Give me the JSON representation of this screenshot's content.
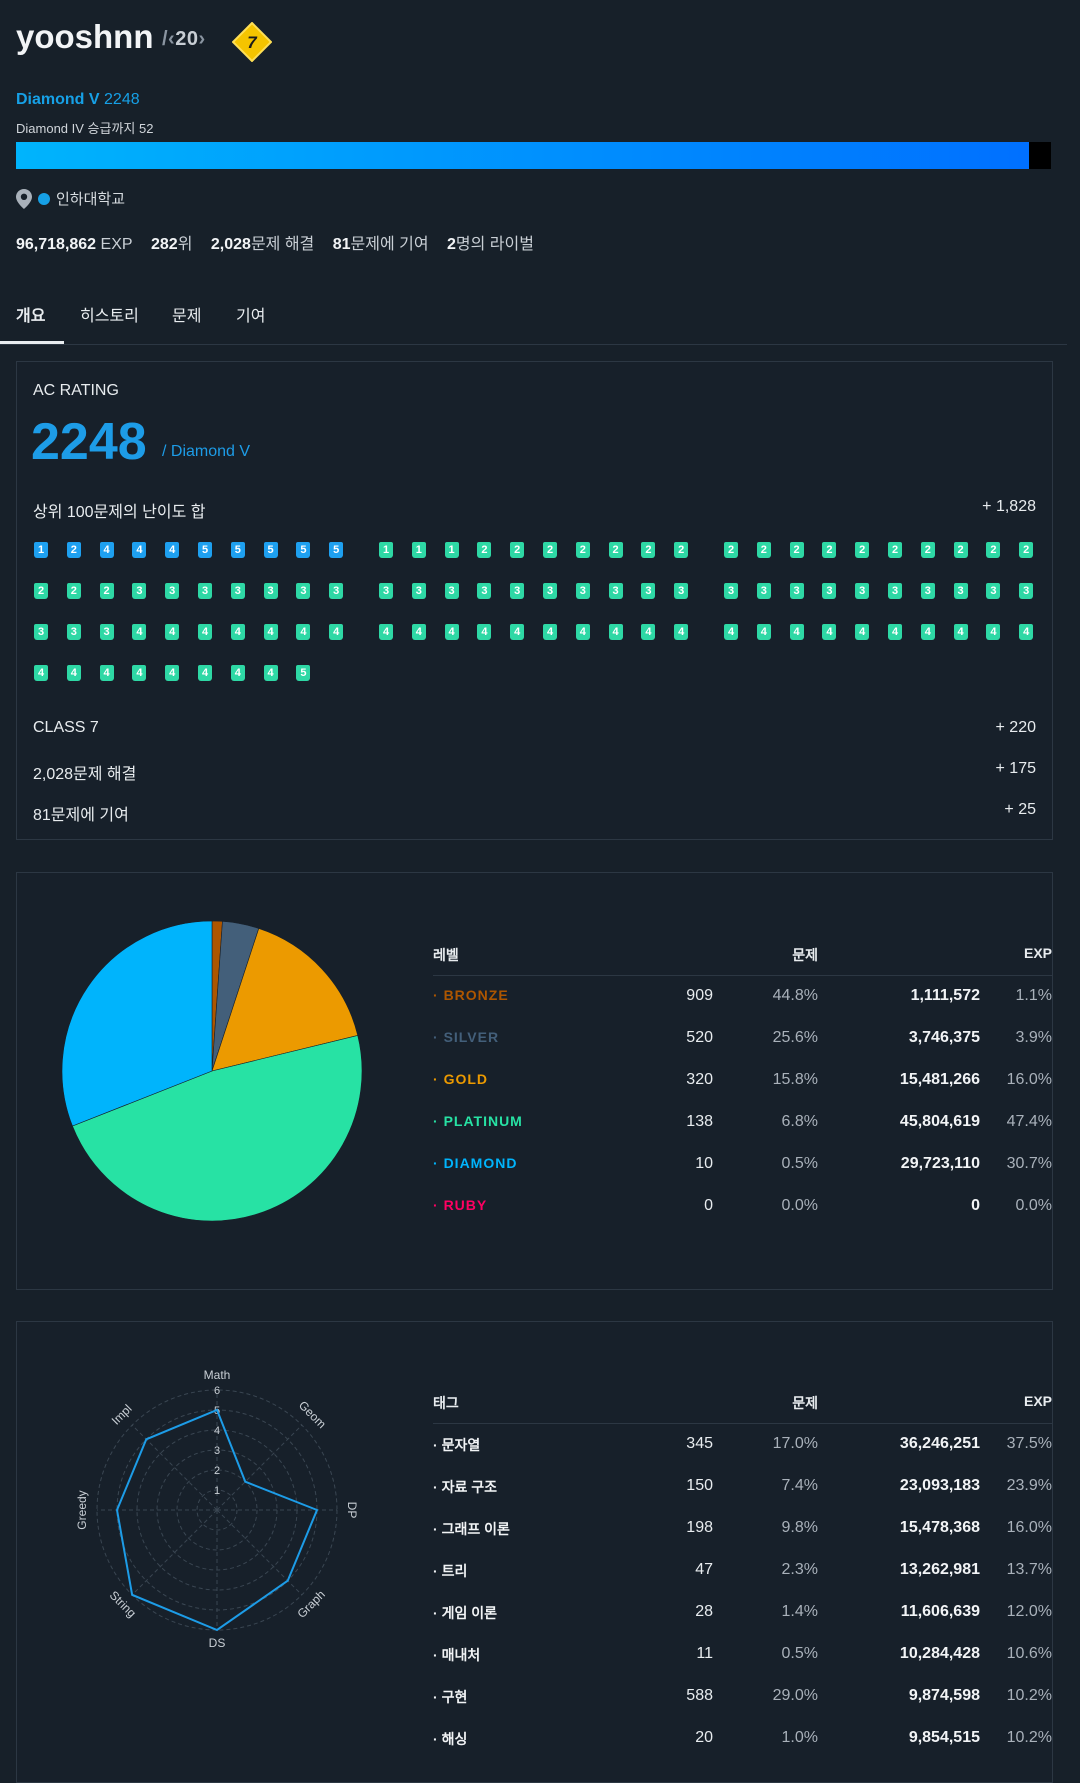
{
  "profile": {
    "username": "yooshnn",
    "ring_number": "20",
    "class_level": "7",
    "tier": "Diamond V",
    "rating": "2248",
    "promotion_text": "Diamond IV 승급까지 52",
    "progress_fraction": 0.979,
    "organization": "인하대학교",
    "stats": {
      "exp": "96,718,862",
      "exp_unit": "EXP",
      "rank": "282",
      "rank_unit": "위",
      "solved": "2,028",
      "solved_unit": "문제 해결",
      "contributed": "81",
      "contributed_unit": "문제에 기여",
      "rivals": "2",
      "rivals_unit": "명의 라이벌"
    }
  },
  "tabs": [
    "개요",
    "히스토리",
    "문제",
    "기여"
  ],
  "ac_rating": {
    "label": "AC RATING",
    "value": "2248",
    "tier_suffix": "/ Diamond V",
    "top100_label": "상위 100문제의 난이도 합",
    "top100_value": "+ 1,828",
    "problem_tiers": [
      "d1",
      "d2",
      "d4",
      "d4",
      "d4",
      "d5",
      "d5",
      "d5",
      "d5",
      "d5",
      "p1",
      "p1",
      "p1",
      "p2",
      "p2",
      "p2",
      "p2",
      "p2",
      "p2",
      "p2",
      "p2",
      "p2",
      "p2",
      "p2",
      "p2",
      "p2",
      "p2",
      "p2",
      "p2",
      "p2",
      "p2",
      "p2",
      "p2",
      "p3",
      "p3",
      "p3",
      "p3",
      "p3",
      "p3",
      "p3",
      "p3",
      "p3",
      "p3",
      "p3",
      "p3",
      "p3",
      "p3",
      "p3",
      "p3",
      "p3",
      "p3",
      "p3",
      "p3",
      "p3",
      "p3",
      "p3",
      "p3",
      "p3",
      "p3",
      "p3",
      "p3",
      "p3",
      "p3",
      "p4",
      "p4",
      "p4",
      "p4",
      "p4",
      "p4",
      "p4",
      "p4",
      "p4",
      "p4",
      "p4",
      "p4",
      "p4",
      "p4",
      "p4",
      "p4",
      "p4",
      "p4",
      "p4",
      "p4",
      "p4",
      "p4",
      "p4",
      "p4",
      "p4",
      "p4",
      "p4",
      "p4",
      "p4",
      "p4",
      "p4",
      "p4",
      "p4",
      "p4",
      "p4",
      "p5"
    ],
    "rows": [
      {
        "label": "CLASS 7",
        "value": "+ 220"
      },
      {
        "label": "2,028문제 해결",
        "value": "+ 175"
      },
      {
        "label": "81문제에 기여",
        "value": "+ 25"
      }
    ]
  },
  "level_table": {
    "headers": {
      "name": "레벨",
      "count": "문제",
      "exp": "EXP"
    },
    "rows": [
      {
        "name": "BRONZE",
        "color": "#ad5600",
        "count": "909",
        "pct": "44.8%",
        "exp": "1,111,572",
        "exp_pct": "1.1%"
      },
      {
        "name": "SILVER",
        "color": "#435f7a",
        "count": "520",
        "pct": "25.6%",
        "exp": "3,746,375",
        "exp_pct": "3.9%"
      },
      {
        "name": "GOLD",
        "color": "#ec9a00",
        "count": "320",
        "pct": "15.8%",
        "exp": "15,481,266",
        "exp_pct": "16.0%"
      },
      {
        "name": "PLATINUM",
        "color": "#27e2a4",
        "count": "138",
        "pct": "6.8%",
        "exp": "45,804,619",
        "exp_pct": "47.4%"
      },
      {
        "name": "DIAMOND",
        "color": "#00b4fc",
        "count": "10",
        "pct": "0.5%",
        "exp": "29,723,110",
        "exp_pct": "30.7%"
      },
      {
        "name": "RUBY",
        "color": "#ff0062",
        "count": "0",
        "pct": "0.0%",
        "exp": "0",
        "exp_pct": "0.0%"
      }
    ]
  },
  "chart_data": {
    "type": "pie",
    "title": "",
    "categories": [
      "BRONZE",
      "SILVER",
      "GOLD",
      "PLATINUM",
      "DIAMOND",
      "RUBY"
    ],
    "values": [
      1.1,
      3.9,
      16.0,
      47.4,
      30.7,
      0.0
    ],
    "units": "EXP %",
    "slice_colors": [
      "#ad5600",
      "#435f7a",
      "#ec9a00",
      "#27e2a4",
      "#00b4fc",
      "#ff0062"
    ]
  },
  "radar_chart": {
    "type": "radar",
    "axes": [
      "Math",
      "Geom",
      "DP",
      "Graph",
      "DS",
      "String",
      "Greedy",
      "Impl"
    ],
    "values": [
      5,
      2,
      5,
      5,
      6,
      6,
      5,
      5
    ],
    "r_ticks": [
      "1",
      "2",
      "3",
      "4",
      "5",
      "6"
    ],
    "r_max": 6,
    "color": "#1d9ce7"
  },
  "tag_table": {
    "headers": {
      "name": "태그",
      "count": "문제",
      "exp": "EXP"
    },
    "rows": [
      {
        "name": "문자열",
        "count": "345",
        "pct": "17.0%",
        "exp": "36,246,251",
        "exp_pct": "37.5%"
      },
      {
        "name": "자료 구조",
        "count": "150",
        "pct": "7.4%",
        "exp": "23,093,183",
        "exp_pct": "23.9%"
      },
      {
        "name": "그래프 이론",
        "count": "198",
        "pct": "9.8%",
        "exp": "15,478,368",
        "exp_pct": "16.0%"
      },
      {
        "name": "트리",
        "count": "47",
        "pct": "2.3%",
        "exp": "13,262,981",
        "exp_pct": "13.7%"
      },
      {
        "name": "게임 이론",
        "count": "28",
        "pct": "1.4%",
        "exp": "11,606,639",
        "exp_pct": "12.0%"
      },
      {
        "name": "매내처",
        "count": "11",
        "pct": "0.5%",
        "exp": "10,284,428",
        "exp_pct": "10.6%"
      },
      {
        "name": "구현",
        "count": "588",
        "pct": "29.0%",
        "exp": "9,874,598",
        "exp_pct": "10.2%"
      },
      {
        "name": "해싱",
        "count": "20",
        "pct": "1.0%",
        "exp": "9,854,515",
        "exp_pct": "10.2%"
      }
    ]
  }
}
